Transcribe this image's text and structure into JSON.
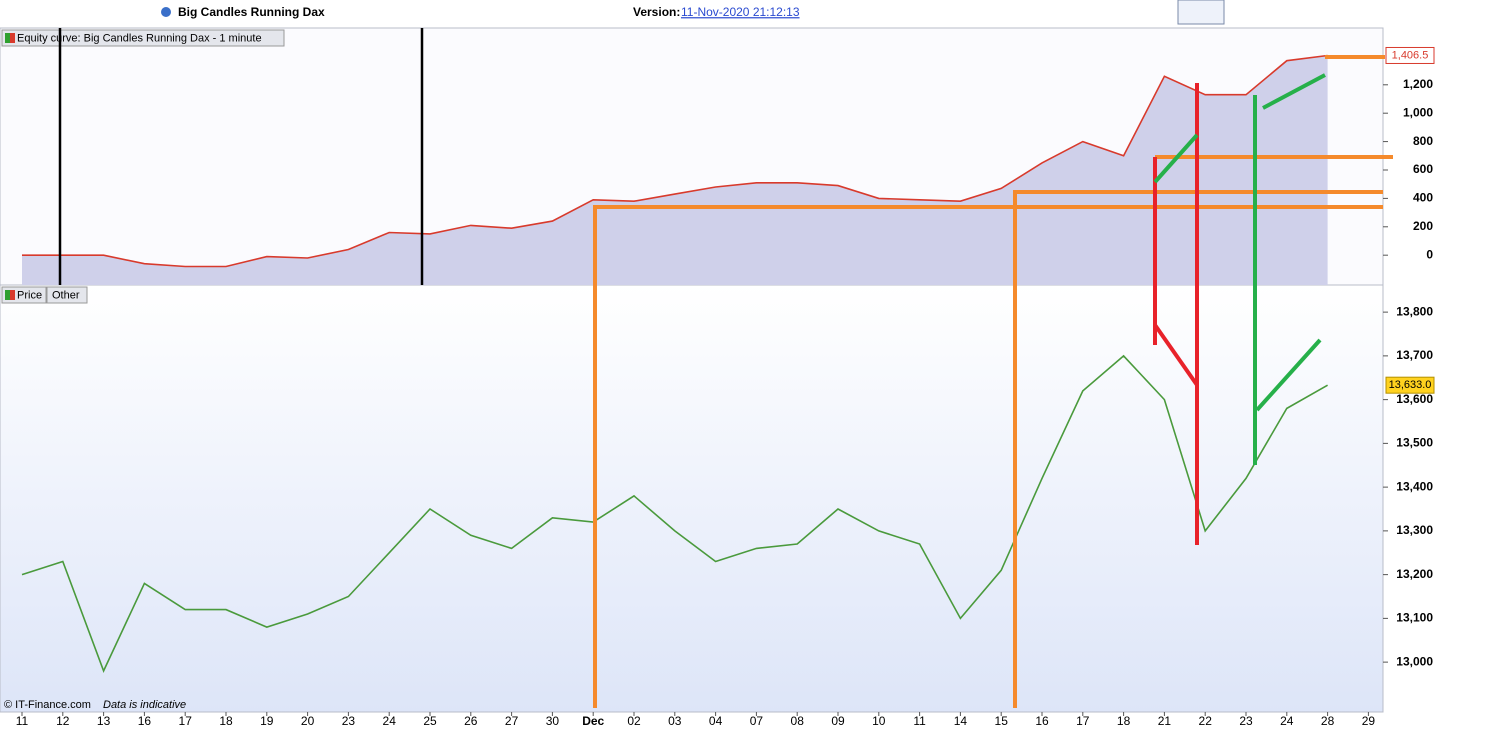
{
  "header": {
    "title": "Big Candles Running Dax",
    "version_label": "Version:",
    "version": "11-Nov-2020 21:12:13"
  },
  "chart_data": [
    {
      "type": "line",
      "title": "Equity curve: Big Candles Running Dax - 1 minute",
      "color": "#d83a2c",
      "fill": "#cfd0ea",
      "values": [
        0,
        0,
        0,
        -60,
        -80,
        -80,
        -10,
        -20,
        40,
        160,
        150,
        210,
        190,
        240,
        390,
        380,
        430,
        480,
        510,
        510,
        490,
        400,
        390,
        380,
        470,
        650,
        800,
        700,
        1260,
        1130,
        1130,
        1370,
        1406.5,
        null
      ],
      "last_value_label": "1,406.5",
      "ylim": [
        -210,
        1600
      ],
      "yticks": [
        0,
        200,
        400,
        600,
        800,
        {
          "value": 1000,
          "label": "1,000"
        },
        {
          "value": 1200,
          "label": "1,200"
        }
      ]
    },
    {
      "type": "line",
      "title": "Price",
      "subtitle": "Other",
      "color": "#4a9a3c",
      "categories": [
        "11",
        "12",
        "13",
        "16",
        "17",
        "18",
        "19",
        "20",
        "23",
        "24",
        "25",
        "26",
        "27",
        "30",
        "Dec",
        "02",
        "03",
        "04",
        "07",
        "08",
        "09",
        "10",
        "11",
        "14",
        "15",
        "16",
        "17",
        "18",
        "21",
        "22",
        "23",
        "24",
        "28",
        "29"
      ],
      "values": [
        13200,
        13230,
        12980,
        13180,
        13120,
        13120,
        13080,
        13110,
        13150,
        13250,
        13350,
        13290,
        13260,
        13330,
        13320,
        13380,
        13300,
        13230,
        13260,
        13270,
        13350,
        13300,
        13270,
        13100,
        13210,
        13420,
        13620,
        13700,
        13600,
        13300,
        13420,
        13580,
        13633,
        null
      ],
      "last_value_label": "13,633.0",
      "ylim": [
        12886,
        13862
      ],
      "yticks": [
        {
          "value": 13000,
          "label": "13,000"
        },
        {
          "value": 13100,
          "label": "13,100"
        },
        {
          "value": 13200,
          "label": "13,200"
        },
        {
          "value": 13300,
          "label": "13,300"
        },
        {
          "value": 13400,
          "label": "13,400"
        },
        {
          "value": 13500,
          "label": "13,500"
        },
        {
          "value": 13600,
          "label": "13,600"
        },
        {
          "value": 13700,
          "label": "13,700"
        },
        {
          "value": 13800,
          "label": "13,800"
        }
      ],
      "footer": "© IT-Finance.com",
      "footer_note": "Data is indicative"
    }
  ]
}
